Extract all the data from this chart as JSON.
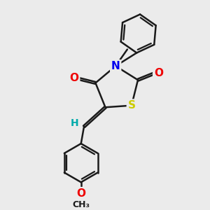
{
  "bg_color": "#ebebeb",
  "bond_color": "#1a1a1a",
  "bond_width": 1.8,
  "atom_colors": {
    "C": "#1a1a1a",
    "N": "#0000ee",
    "O": "#ee0000",
    "S": "#cccc00",
    "H": "#00aaaa"
  },
  "font_size": 10
}
